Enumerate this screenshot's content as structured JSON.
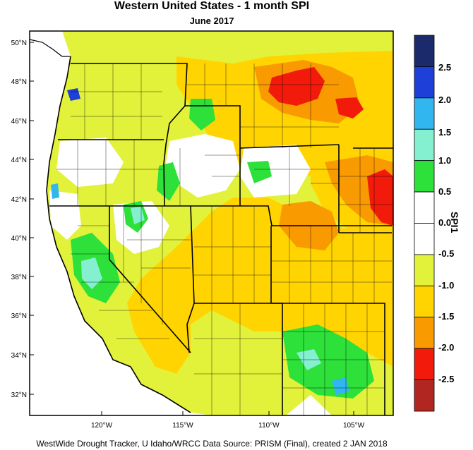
{
  "title": "Western United States - 1 month SPI",
  "subtitle": "June 2017",
  "credit": "WestWide Drought Tracker, U Idaho/WRCC Data Source: PRISM (Final), created  2 JAN 2018",
  "legend": {
    "title": "SPI1",
    "tick_labels": [
      "2.5",
      "2.0",
      "1.5",
      "1.0",
      "0.5",
      "0.0",
      "-0.5",
      "-1.0",
      "-1.5",
      "-2.0",
      "-2.5"
    ],
    "bins": [
      {
        "color": "#1a2a6a"
      },
      {
        "color": "#1e3fd8"
      },
      {
        "color": "#32b6f0"
      },
      {
        "color": "#84f0d0"
      },
      {
        "color": "#2ee03a"
      },
      {
        "color": "#ffffff"
      },
      {
        "color": "#ffffff"
      },
      {
        "color": "#e2f23a"
      },
      {
        "color": "#ffd400"
      },
      {
        "color": "#f99a00"
      },
      {
        "color": "#f21a0a"
      },
      {
        "color": "#b22622"
      }
    ]
  },
  "axes": {
    "lat_labels": [
      "50°N",
      "48°N",
      "46°N",
      "44°N",
      "42°N",
      "40°N",
      "38°N",
      "36°N",
      "34°N",
      "32°N"
    ],
    "lon_labels": [
      "120°W",
      "115°W",
      "110°W",
      "105°W"
    ]
  }
}
